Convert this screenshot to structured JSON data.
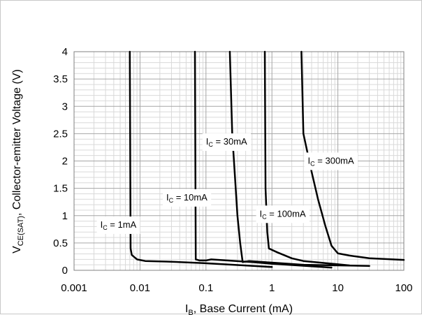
{
  "chart_data": {
    "type": "line",
    "xlabel": {
      "main": "I",
      "sub": "B",
      "rest": ", Base Current (mA)"
    },
    "ylabel": {
      "main": "V",
      "sub": "CE(SAT)",
      "rest": ", Collector-emitter Voltage (V)"
    },
    "xscale": "log",
    "xlim": [
      0.001,
      100
    ],
    "ylim": [
      0,
      4
    ],
    "x_ticks": [
      "0.001",
      "0.01",
      "0.1",
      "1",
      "10",
      "100"
    ],
    "y_ticks": [
      "0",
      "0.5",
      "1",
      "1.5",
      "2",
      "2.5",
      "3",
      "3.5",
      "4"
    ],
    "grid": true,
    "series": [
      {
        "points": [
          [
            0.007,
            4.0
          ],
          [
            0.0072,
            0.4
          ],
          [
            0.0075,
            0.28
          ],
          [
            0.009,
            0.2
          ],
          [
            0.012,
            0.17
          ],
          [
            0.025,
            0.16
          ],
          [
            0.1,
            0.13
          ],
          [
            1,
            0.06
          ]
        ]
      },
      {
        "points": [
          [
            0.068,
            4.0
          ],
          [
            0.07,
            0.2
          ],
          [
            0.08,
            0.18
          ],
          [
            0.1,
            0.18
          ],
          [
            0.12,
            0.2
          ],
          [
            0.5,
            0.15
          ],
          [
            1,
            0.12
          ],
          [
            8,
            0.05
          ]
        ]
      },
      {
        "points": [
          [
            0.23,
            4.0
          ],
          [
            0.25,
            2.5
          ],
          [
            0.3,
            1.0
          ],
          [
            0.33,
            0.5
          ],
          [
            0.36,
            0.15
          ],
          [
            0.45,
            0.17
          ],
          [
            1,
            0.14
          ],
          [
            3,
            0.1
          ],
          [
            30,
            0.08
          ]
        ]
      },
      {
        "points": [
          [
            0.78,
            4.0
          ],
          [
            0.8,
            1.5
          ],
          [
            0.85,
            0.7
          ],
          [
            0.9,
            0.4
          ],
          [
            1.2,
            0.33
          ],
          [
            2,
            0.22
          ],
          [
            3,
            0.17
          ],
          [
            10,
            0.11
          ],
          [
            15,
            0.09
          ]
        ]
      },
      {
        "points": [
          [
            2.8,
            4.0
          ],
          [
            3,
            2.5
          ],
          [
            4,
            1.8
          ],
          [
            5,
            1.3
          ],
          [
            6.5,
            0.8
          ],
          [
            8,
            0.45
          ],
          [
            10,
            0.31
          ],
          [
            15,
            0.27
          ],
          [
            30,
            0.22
          ],
          [
            100,
            0.19
          ]
        ]
      }
    ],
    "annotations": [
      {
        "main": "I",
        "sub": "C",
        "rest": " = 1mA",
        "x": 0.0025,
        "y": 0.78
      },
      {
        "main": "I",
        "sub": "C",
        "rest": " = 10mA",
        "x": 0.025,
        "y": 1.28
      },
      {
        "main": "I",
        "sub": "C",
        "rest": " = 30mA",
        "x": 0.1,
        "y": 2.3
      },
      {
        "main": "I",
        "sub": "C",
        "rest": " = 100mA",
        "x": 0.65,
        "y": 0.98
      },
      {
        "main": "I",
        "sub": "C",
        "rest": " = 300mA",
        "x": 3.5,
        "y": 1.95
      }
    ]
  }
}
